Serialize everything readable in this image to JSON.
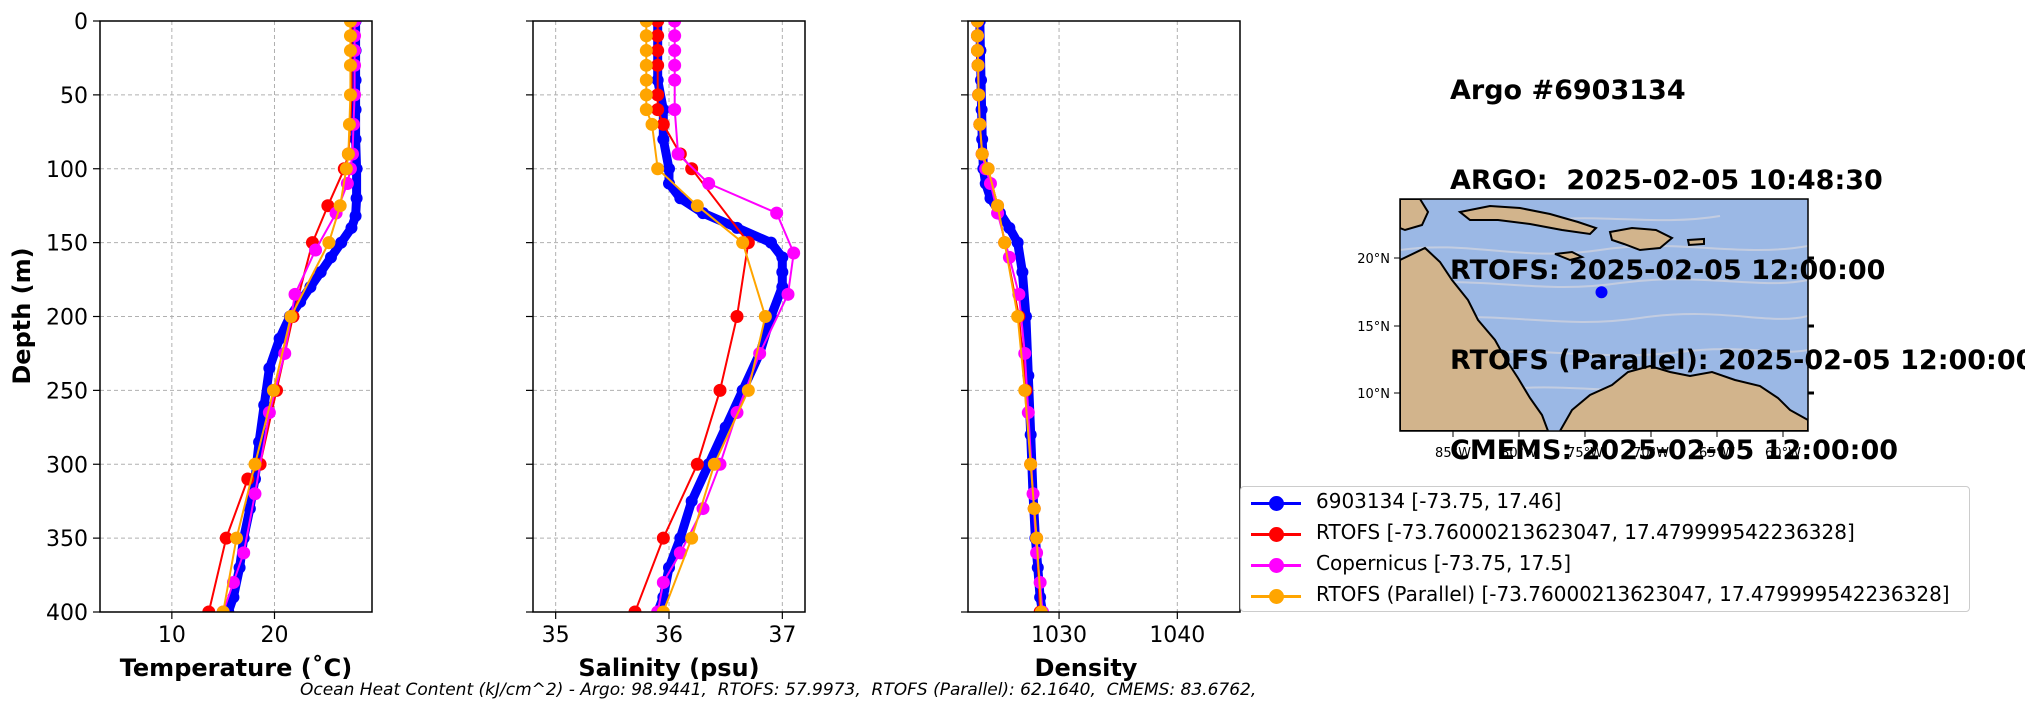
{
  "info": {
    "title": "Argo #6903134",
    "lines": [
      "ARGO:  2025-02-05 10:48:30",
      "RTOFS: 2025-02-05 12:00:00",
      "RTOFS (Parallel): 2025-02-05 12:00:00",
      "CMEMS: 2025-02-05 12:00:00"
    ]
  },
  "footer": "Ocean Heat Content (kJ/cm^2) - Argo: 98.9441,  RTOFS: 57.9973,  RTOFS (Parallel): 62.1640,  CMEMS: 83.6762,",
  "colors": {
    "argo": "#0000ff",
    "rtofs": "#ff0000",
    "copernicus": "#ff00ff",
    "parallel": "#ffa500"
  },
  "legend": [
    {
      "label": "6903134 [-73.75, 17.46]",
      "color": "#0000ff"
    },
    {
      "label": "RTOFS [-73.76000213623047, 17.479999542236328]",
      "color": "#ff0000"
    },
    {
      "label": "Copernicus [-73.75, 17.5]",
      "color": "#ff00ff"
    },
    {
      "label": "RTOFS (Parallel) [-73.76000213623047, 17.479999542236328]",
      "color": "#ffa500"
    }
  ],
  "chart_data": [
    {
      "type": "line",
      "xlabel": "Temperature (˚C)",
      "ylabel": "Depth (m)",
      "xlim": [
        3,
        29.5
      ],
      "ylim": [
        400,
        0
      ],
      "xticks": [
        10,
        20
      ],
      "yticks": [
        0,
        50,
        100,
        150,
        200,
        250,
        300,
        350,
        400
      ],
      "grid": true,
      "series": [
        {
          "name": "6903134",
          "color": "#0000ff",
          "marker": "small",
          "x": [
            27.9,
            27.9,
            27.9,
            27.9,
            27.9,
            28.0,
            28.0,
            27.9,
            27.5,
            26.5,
            25.5,
            24.5,
            23.5,
            22.5,
            21.5,
            20.5,
            19.5,
            19.0,
            18.5,
            18.1,
            17.6,
            17.0,
            16.6,
            16.0,
            15.5
          ],
          "y": [
            0,
            20,
            40,
            60,
            80,
            100,
            120,
            132,
            140,
            150,
            160,
            170,
            180,
            190,
            200,
            215,
            235,
            260,
            285,
            310,
            330,
            350,
            370,
            390,
            400
          ]
        },
        {
          "name": "RTOFS",
          "color": "#ff0000",
          "x": [
            27.5,
            27.5,
            27.5,
            27.5,
            27.5,
            27.4,
            27.2,
            26.8,
            25.2,
            23.7,
            21.8,
            20.2,
            18.6,
            17.4,
            15.3,
            13.6
          ],
          "y": [
            0,
            10,
            20,
            30,
            50,
            70,
            90,
            100,
            125,
            150,
            200,
            250,
            300,
            310,
            350,
            400
          ]
        },
        {
          "name": "Copernicus",
          "color": "#ff00ff",
          "x": [
            27.8,
            27.8,
            27.8,
            27.8,
            27.8,
            27.7,
            27.6,
            27.4,
            27.1,
            26.0,
            24.0,
            22.0,
            21.0,
            19.5,
            18.1,
            17.0,
            16.0,
            15.0
          ],
          "y": [
            0,
            10,
            20,
            30,
            50,
            70,
            90,
            100,
            110,
            130,
            155,
            185,
            225,
            265,
            320,
            360,
            380,
            400
          ]
        },
        {
          "name": "RTOFS (Parallel)",
          "color": "#ffa500",
          "x": [
            27.4,
            27.4,
            27.4,
            27.4,
            27.4,
            27.3,
            27.2,
            27.0,
            26.4,
            25.3,
            21.6,
            19.9,
            18.1,
            16.3,
            15.0
          ],
          "y": [
            0,
            10,
            20,
            30,
            50,
            70,
            90,
            100,
            125,
            150,
            200,
            250,
            300,
            350,
            400
          ]
        }
      ]
    },
    {
      "type": "line",
      "xlabel": "Salinity (psu)",
      "ylabel": "",
      "xlim": [
        34.8,
        37.2
      ],
      "ylim": [
        400,
        0
      ],
      "xticks": [
        35,
        36,
        37
      ],
      "yticks": [
        0,
        50,
        100,
        150,
        200,
        250,
        300,
        350,
        400
      ],
      "grid": true,
      "series": [
        {
          "name": "6903134",
          "color": "#0000ff",
          "marker": "small",
          "x": [
            35.9,
            35.9,
            35.9,
            35.95,
            35.95,
            36.0,
            36.0,
            36.1,
            36.3,
            36.6,
            36.9,
            37.0,
            37.0,
            37.0,
            36.9,
            36.8,
            36.65,
            36.5,
            36.35,
            36.2,
            36.1,
            36.0,
            35.95,
            35.9
          ],
          "y": [
            0,
            20,
            40,
            60,
            80,
            100,
            110,
            120,
            130,
            140,
            150,
            160,
            170,
            180,
            200,
            225,
            250,
            275,
            300,
            325,
            350,
            370,
            390,
            400
          ]
        },
        {
          "name": "RTOFS",
          "color": "#ff0000",
          "x": [
            35.9,
            35.9,
            35.9,
            35.9,
            35.9,
            35.9,
            35.95,
            36.1,
            36.2,
            36.7,
            36.6,
            36.45,
            36.25,
            35.95,
            35.7
          ],
          "y": [
            0,
            10,
            20,
            30,
            50,
            60,
            70,
            90,
            100,
            150,
            200,
            250,
            300,
            350,
            400
          ]
        },
        {
          "name": "Copernicus",
          "color": "#ff00ff",
          "x": [
            36.05,
            36.05,
            36.05,
            36.05,
            36.05,
            36.05,
            36.08,
            36.35,
            36.95,
            37.1,
            37.05,
            36.8,
            36.6,
            36.45,
            36.3,
            36.1,
            35.95,
            35.9
          ],
          "y": [
            0,
            10,
            20,
            30,
            40,
            60,
            90,
            110,
            130,
            157,
            185,
            225,
            265,
            300,
            330,
            360,
            380,
            400
          ]
        },
        {
          "name": "RTOFS (Parallel)",
          "color": "#ffa500",
          "x": [
            35.8,
            35.8,
            35.8,
            35.8,
            35.8,
            35.8,
            35.8,
            35.85,
            35.9,
            36.25,
            36.65,
            36.85,
            36.7,
            36.4,
            36.2,
            35.95
          ],
          "y": [
            0,
            10,
            20,
            30,
            40,
            50,
            60,
            70,
            100,
            125,
            150,
            200,
            250,
            300,
            350,
            400
          ]
        }
      ]
    },
    {
      "type": "line",
      "xlabel": "Density",
      "ylabel": "",
      "xlim": [
        1022.3,
        1045.3
      ],
      "ylim": [
        400,
        0
      ],
      "xticks": [
        1030,
        1040
      ],
      "yticks": [
        0,
        50,
        100,
        150,
        200,
        250,
        300,
        350,
        400
      ],
      "grid": true,
      "series": [
        {
          "name": "6903134",
          "color": "#0000ff",
          "marker": "small",
          "x": [
            1023.3,
            1023.35,
            1023.4,
            1023.45,
            1023.5,
            1023.6,
            1023.8,
            1024.2,
            1025.0,
            1025.8,
            1026.5,
            1026.9,
            1027.2,
            1027.4,
            1027.6,
            1027.8,
            1028.0,
            1028.2,
            1028.4,
            1028.6
          ],
          "y": [
            0,
            20,
            40,
            60,
            80,
            100,
            110,
            120,
            130,
            140,
            150,
            170,
            200,
            240,
            280,
            320,
            350,
            370,
            390,
            400
          ]
        },
        {
          "name": "RTOFS",
          "color": "#ff0000",
          "x": [
            1023.1,
            1023.1,
            1023.1,
            1023.15,
            1023.2,
            1023.3,
            1023.5,
            1024.0,
            1024.8,
            1025.4,
            1026.6,
            1027.2,
            1027.6,
            1027.9,
            1028.1,
            1028.4
          ],
          "y": [
            0,
            10,
            20,
            30,
            50,
            70,
            90,
            100,
            125,
            150,
            200,
            250,
            300,
            330,
            350,
            400
          ]
        },
        {
          "name": "Copernicus",
          "color": "#ff00ff",
          "x": [
            1023.1,
            1023.1,
            1023.15,
            1023.2,
            1023.3,
            1023.5,
            1023.8,
            1024.2,
            1024.8,
            1025.8,
            1026.6,
            1027.1,
            1027.4,
            1027.8,
            1028.1,
            1028.4,
            1028.6
          ],
          "y": [
            0,
            10,
            30,
            50,
            70,
            90,
            100,
            110,
            130,
            160,
            185,
            225,
            265,
            320,
            360,
            380,
            400
          ]
        },
        {
          "name": "RTOFS (Parallel)",
          "color": "#ffa500",
          "x": [
            1023.1,
            1023.1,
            1023.1,
            1023.15,
            1023.2,
            1023.3,
            1023.5,
            1024.0,
            1024.8,
            1025.4,
            1026.5,
            1027.1,
            1027.6,
            1027.9,
            1028.1,
            1028.5
          ],
          "y": [
            0,
            10,
            20,
            30,
            50,
            70,
            90,
            100,
            125,
            150,
            200,
            250,
            300,
            330,
            350,
            400
          ]
        }
      ]
    }
  ],
  "map": {
    "lon_ticks": [
      "85°W",
      "80°W",
      "75°W",
      "70°W",
      "65°W",
      "60°W"
    ],
    "lat_ticks": [
      "20°N",
      "15°N",
      "10°N"
    ],
    "ocean_color": "#9bb8e5",
    "land_color": "#d2b48c",
    "point": {
      "lon": -73.75,
      "lat": 17.46,
      "color": "#0000ff"
    }
  }
}
